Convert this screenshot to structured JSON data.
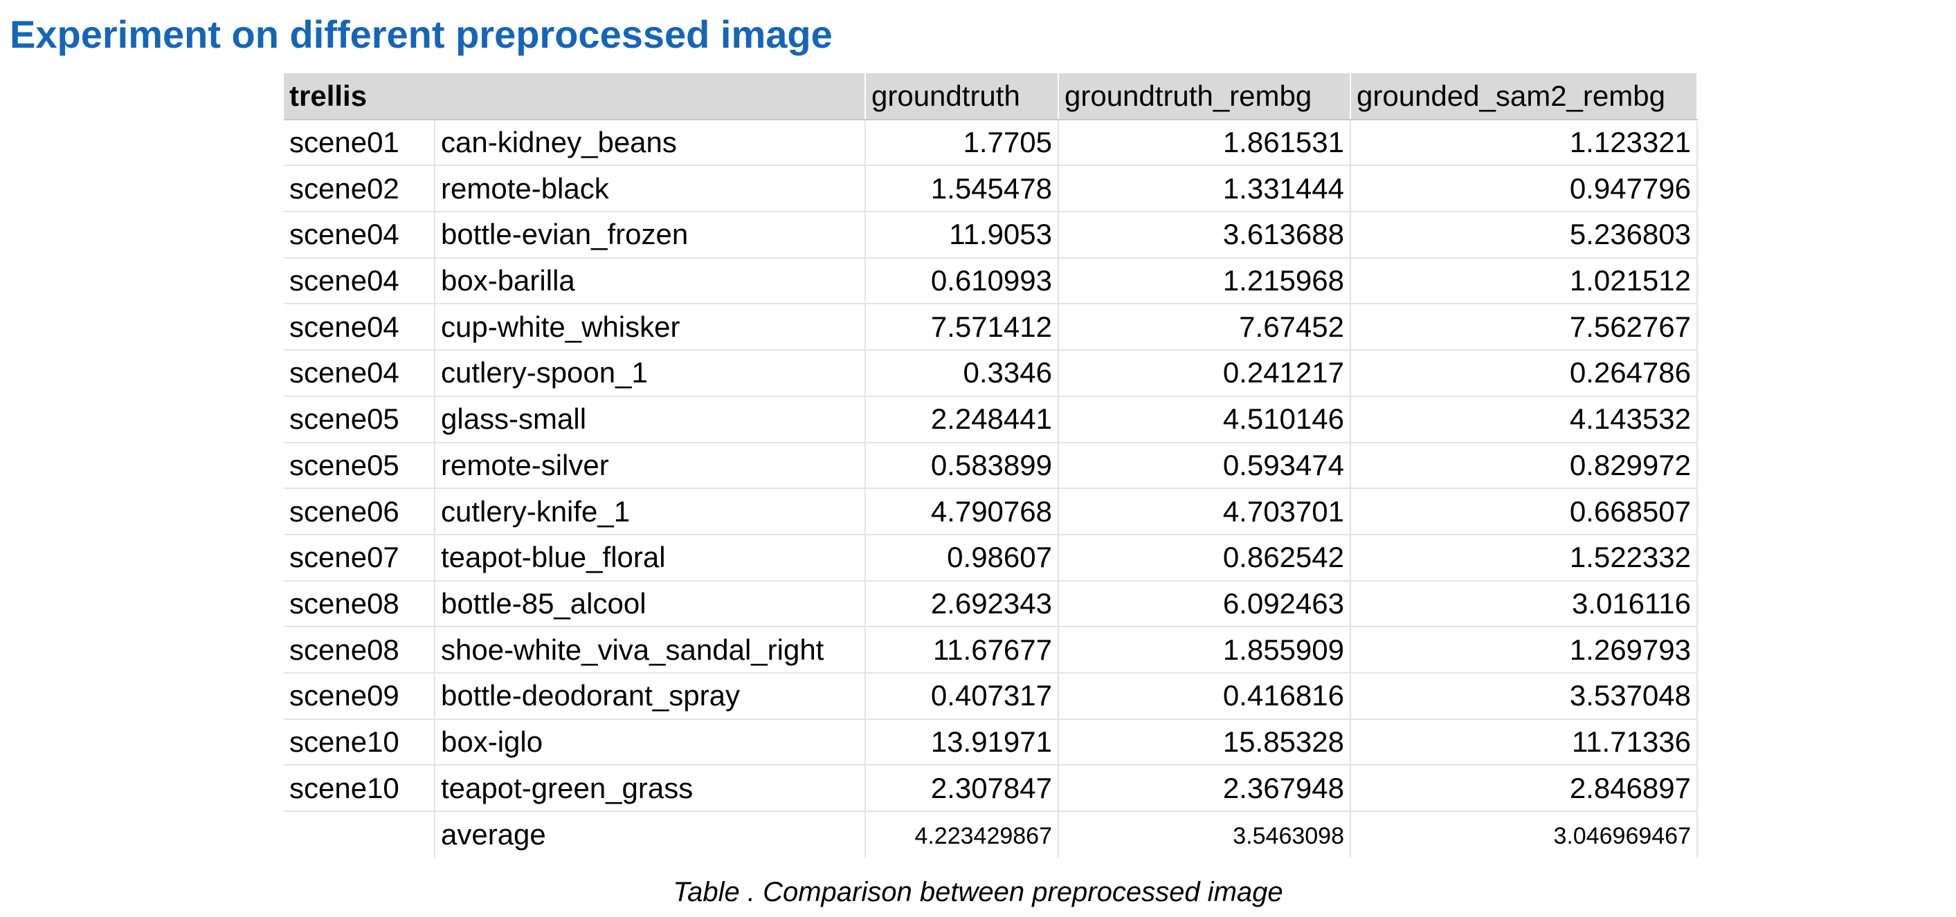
{
  "title": "Experiment on different preprocessed image",
  "table": {
    "model_label": "trellis",
    "columns": [
      "groundtruth",
      "groundtruth_rembg",
      "grounded_sam2_rembg"
    ],
    "rows": [
      {
        "scene": "scene01",
        "object": "can-kidney_beans",
        "values": [
          "1.7705",
          "1.861531",
          "1.123321"
        ]
      },
      {
        "scene": "scene02",
        "object": "remote-black",
        "values": [
          "1.545478",
          "1.331444",
          "0.947796"
        ]
      },
      {
        "scene": "scene04",
        "object": "bottle-evian_frozen",
        "values": [
          "11.9053",
          "3.613688",
          "5.236803"
        ]
      },
      {
        "scene": "scene04",
        "object": "box-barilla",
        "values": [
          "0.610993",
          "1.215968",
          "1.021512"
        ]
      },
      {
        "scene": "scene04",
        "object": "cup-white_whisker",
        "values": [
          "7.571412",
          "7.67452",
          "7.562767"
        ]
      },
      {
        "scene": "scene04",
        "object": "cutlery-spoon_1",
        "values": [
          "0.3346",
          "0.241217",
          "0.264786"
        ]
      },
      {
        "scene": "scene05",
        "object": "glass-small",
        "values": [
          "2.248441",
          "4.510146",
          "4.143532"
        ]
      },
      {
        "scene": "scene05",
        "object": "remote-silver",
        "values": [
          "0.583899",
          "0.593474",
          "0.829972"
        ]
      },
      {
        "scene": "scene06",
        "object": "cutlery-knife_1",
        "values": [
          "4.790768",
          "4.703701",
          "0.668507"
        ]
      },
      {
        "scene": "scene07",
        "object": "teapot-blue_floral",
        "values": [
          "0.98607",
          "0.862542",
          "1.522332"
        ]
      },
      {
        "scene": "scene08",
        "object": "bottle-85_alcool",
        "values": [
          "2.692343",
          "6.092463",
          "3.016116"
        ]
      },
      {
        "scene": "scene08",
        "object": "shoe-white_viva_sandal_right",
        "values": [
          "11.67677",
          "1.855909",
          "1.269793"
        ]
      },
      {
        "scene": "scene09",
        "object": "bottle-deodorant_spray",
        "values": [
          "0.407317",
          "0.416816",
          "3.537048"
        ]
      },
      {
        "scene": "scene10",
        "object": "box-iglo",
        "values": [
          "13.91971",
          "15.85328",
          "11.71336"
        ]
      },
      {
        "scene": "scene10",
        "object": "teapot-green_grass",
        "values": [
          "2.307847",
          "2.367948",
          "2.846897"
        ]
      }
    ],
    "average": {
      "label": "average",
      "values": [
        "4.223429867",
        "3.5463098",
        "3.046969467"
      ]
    }
  },
  "caption": "Table . Comparison between preprocessed image",
  "colors": {
    "title": "#1565b8",
    "header_background": "#d9d9d9",
    "grid": "#e4e4e4"
  }
}
